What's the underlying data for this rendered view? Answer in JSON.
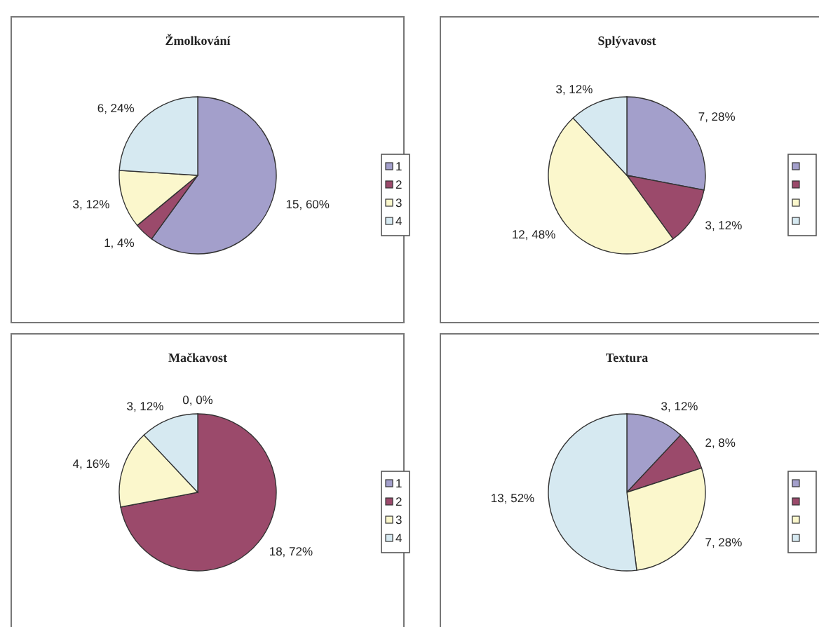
{
  "chart_data": [
    {
      "type": "pie",
      "title": "Žmolkování",
      "categories": [
        "1",
        "2",
        "3",
        "4"
      ],
      "values": [
        15,
        1,
        3,
        6
      ],
      "value_labels": [
        "15, 60%",
        "1, 4%",
        "3, 12%",
        "6, 24%"
      ],
      "colors": [
        "#a39fcb",
        "#9b4a6b",
        "#fbf7cc",
        "#d6e9f1"
      ],
      "legend": "right"
    },
    {
      "type": "pie",
      "title": "Splývavost",
      "categories": [
        null,
        null,
        null,
        null
      ],
      "values": [
        7,
        3,
        12,
        3
      ],
      "value_labels": [
        "7, 28%",
        "3, 12%",
        "12, 48%",
        "3, 12%"
      ],
      "colors": [
        "#a39fcb",
        "#9b4a6b",
        "#fbf7cc",
        "#d6e9f1"
      ],
      "legend": false
    },
    {
      "type": "pie",
      "title": "Mačkavost",
      "categories": [
        "1",
        "2",
        "3",
        "4"
      ],
      "values": [
        0,
        18,
        4,
        3
      ],
      "value_labels": [
        "0, 0%",
        "18, 72%",
        "4, 16%",
        "3, 12%"
      ],
      "colors": [
        "#a39fcb",
        "#9b4a6b",
        "#fbf7cc",
        "#d6e9f1"
      ],
      "legend": "right"
    },
    {
      "type": "pie",
      "title": "Textura",
      "categories": [
        null,
        null,
        null,
        null
      ],
      "values": [
        3,
        2,
        7,
        13
      ],
      "value_labels": [
        "3, 12%",
        "2, 8%",
        "7, 28%",
        "13, 52%"
      ],
      "colors": [
        "#a39fcb",
        "#9b4a6b",
        "#fbf7cc",
        "#d6e9f1"
      ],
      "legend": false
    }
  ]
}
